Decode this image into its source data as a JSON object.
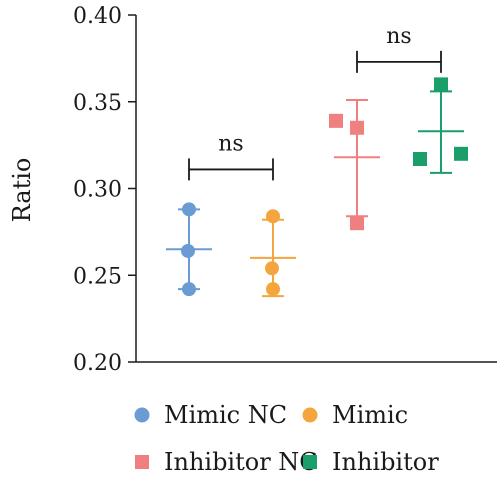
{
  "chart_data": {
    "type": "scatter",
    "ylabel": "Ratio",
    "ylim": [
      0.2,
      0.4
    ],
    "yticks": [
      "0.20",
      "0.25",
      "0.30",
      "0.35",
      "0.40"
    ],
    "grid": false,
    "legend_position": "bottom",
    "series": [
      {
        "name": "Mimic NC",
        "marker": "circle",
        "color": "#6a9bd3",
        "points": [
          0.288,
          0.264,
          0.242
        ],
        "mean": 0.265,
        "sd_low": 0.242,
        "sd_high": 0.288
      },
      {
        "name": "Mimic",
        "marker": "circle",
        "color": "#f5a53d",
        "points": [
          0.284,
          0.254,
          0.242
        ],
        "mean": 0.26,
        "sd_low": 0.238,
        "sd_high": 0.282
      },
      {
        "name": "Inhibitor NC",
        "marker": "square",
        "color": "#f08080",
        "points": [
          0.339,
          0.335,
          0.28
        ],
        "mean": 0.318,
        "sd_low": 0.284,
        "sd_high": 0.351
      },
      {
        "name": "Inhibitor",
        "marker": "square",
        "color": "#1a9e6a",
        "points": [
          0.36,
          0.317,
          0.32
        ],
        "mean": 0.333,
        "sd_low": 0.309,
        "sd_high": 0.356
      }
    ],
    "annotations": [
      {
        "text": "ns",
        "between": [
          "Mimic NC",
          "Mimic"
        ],
        "y": 0.311
      },
      {
        "text": "ns",
        "between": [
          "Inhibitor NC",
          "Inhibitor"
        ],
        "y": 0.373
      }
    ]
  }
}
